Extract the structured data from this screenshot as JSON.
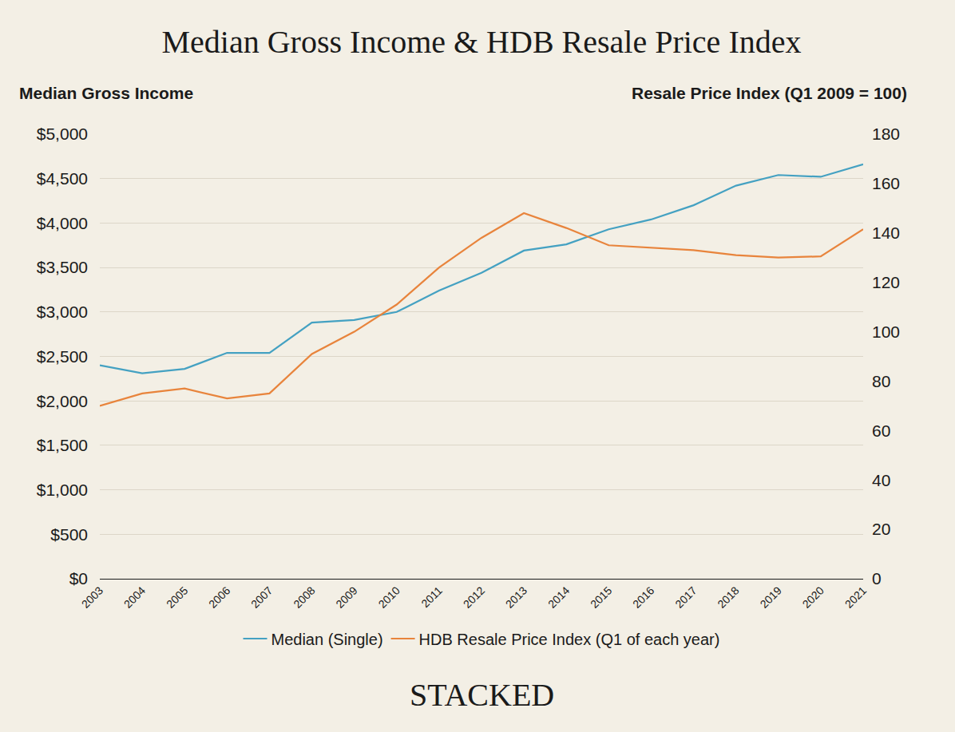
{
  "chart_data": {
    "type": "line",
    "title": "Median Gross Income & HDB Resale Price Index",
    "y_label": "Median Gross Income",
    "y2_label": "Resale Price Index (Q1 2009 = 100)",
    "annotations": [
      {
        "text": "STACKED"
      }
    ],
    "categories": [
      "2003",
      "2004",
      "2005",
      "2006",
      "2007",
      "2008",
      "2009",
      "2010",
      "2011",
      "2012",
      "2013",
      "2014",
      "2015",
      "2016",
      "2017",
      "2018",
      "2019",
      "2020",
      "2021"
    ],
    "series": [
      {
        "name": "Median (Single)",
        "color": "#44a1c2",
        "values": [
          2400,
          2310,
          2360,
          2540,
          2540,
          2880,
          2910,
          3000,
          3240,
          3440,
          3690,
          3760,
          3930,
          4040,
          4200,
          4420,
          4540,
          4520,
          4660
        ]
      },
      {
        "name": "HDB Resale Price Index (Q1 of each year)",
        "color": "#e8843c",
        "axis": "y2",
        "values": [
          70,
          75,
          77,
          73,
          75,
          91,
          100,
          111,
          126,
          138,
          148,
          142,
          135,
          134,
          133,
          131,
          130,
          130.5,
          141.5
        ]
      }
    ],
    "ylim": [
      0,
      5000
    ],
    "yticks": [
      {
        "value": 0,
        "label": "$0"
      },
      {
        "value": 500,
        "label": "$500"
      },
      {
        "value": 1000,
        "label": "$1,000"
      },
      {
        "value": 1500,
        "label": "$1,500"
      },
      {
        "value": 2000,
        "label": "$2,000"
      },
      {
        "value": 2500,
        "label": "$2,500"
      },
      {
        "value": 3000,
        "label": "$3,000"
      },
      {
        "value": 3500,
        "label": "$3,500"
      },
      {
        "value": 4000,
        "label": "$4,000"
      },
      {
        "value": 4500,
        "label": "$4,500"
      },
      {
        "value": 5000,
        "label": "$5,000"
      }
    ],
    "y2lim": [
      0,
      180
    ],
    "y2ticks": [
      0,
      20,
      40,
      60,
      80,
      100,
      120,
      140,
      160,
      180
    ],
    "grid": true,
    "legend": "bottom"
  }
}
